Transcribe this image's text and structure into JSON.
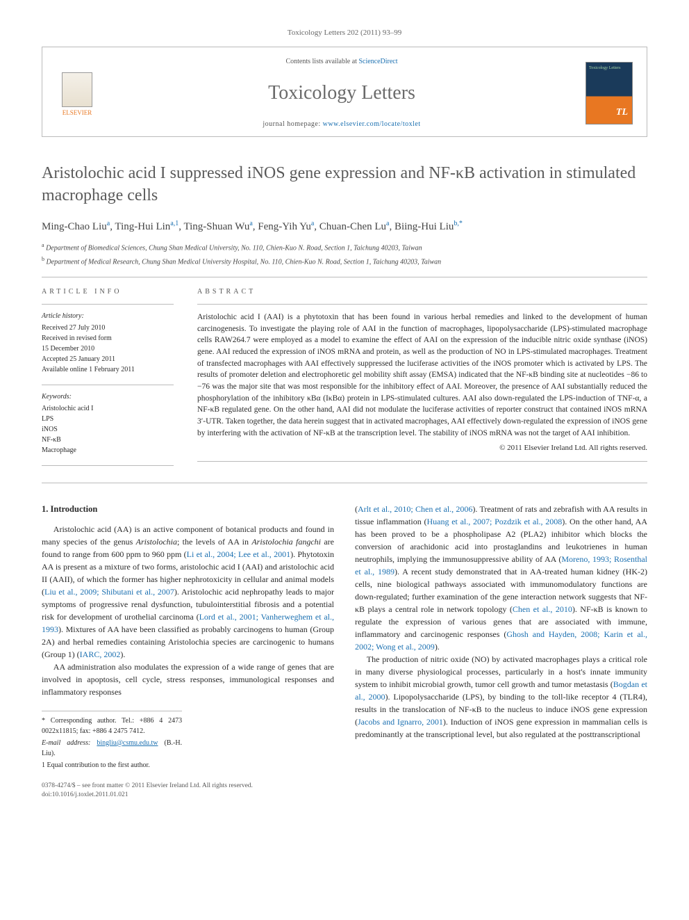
{
  "header": {
    "citation": "Toxicology Letters 202 (2011) 93–99",
    "contents_prefix": "Contents lists available at ",
    "contents_link": "ScienceDirect",
    "journal_name": "Toxicology Letters",
    "homepage_prefix": "journal homepage: ",
    "homepage_url": "www.elsevier.com/locate/toxlet",
    "publisher": "ELSEVIER",
    "cover_label": "Toxicology Letters"
  },
  "article": {
    "title": "Aristolochic acid I suppressed iNOS gene expression and NF-κB activation in stimulated macrophage cells",
    "authors_html": "Ming-Chao Liu<sup>a</sup>, Ting-Hui Lin<sup>a,1</sup>, Ting-Shuan Wu<sup>a</sup>, Feng-Yih Yu<sup>a</sup>, Chuan-Chen Lu<sup>a</sup>, Biing-Hui Liu<sup>b,*</sup>",
    "affiliations": [
      "a Department of Biomedical Sciences, Chung Shan Medical University, No. 110, Chien-Kuo N. Road, Section 1, Taichung 40203, Taiwan",
      "b Department of Medical Research, Chung Shan Medical University Hospital, No. 110, Chien-Kuo N. Road, Section 1, Taichung 40203, Taiwan"
    ]
  },
  "info": {
    "header": "ARTICLE INFO",
    "history_label": "Article history:",
    "history": [
      "Received 27 July 2010",
      "Received in revised form",
      "15 December 2010",
      "Accepted 25 January 2011",
      "Available online 1 February 2011"
    ],
    "keywords_label": "Keywords:",
    "keywords": [
      "Aristolochic acid I",
      "LPS",
      "iNOS",
      "NF-κB",
      "Macrophage"
    ]
  },
  "abstract": {
    "header": "ABSTRACT",
    "text": "Aristolochic acid I (AAI) is a phytotoxin that has been found in various herbal remedies and linked to the development of human carcinogenesis. To investigate the playing role of AAI in the function of macrophages, lipopolysaccharide (LPS)-stimulated macrophage cells RAW264.7 were employed as a model to examine the effect of AAI on the expression of the inducible nitric oxide synthase (iNOS) gene. AAI reduced the expression of iNOS mRNA and protein, as well as the production of NO in LPS-stimulated macrophages. Treatment of transfected macrophages with AAI effectively suppressed the luciferase activities of the iNOS promoter which is activated by LPS. The results of promoter deletion and electrophoretic gel mobility shift assay (EMSA) indicated that the NF-κB binding site at nucleotides −86 to −76 was the major site that was most responsible for the inhibitory effect of AAI. Moreover, the presence of AAI substantially reduced the phosphorylation of the inhibitory κBα (IκBα) protein in LPS-stimulated cultures. AAI also down-regulated the LPS-induction of TNF-α, a NF-κB regulated gene. On the other hand, AAI did not modulate the luciferase activities of reporter construct that contained iNOS mRNA 3′-UTR. Taken together, the data herein suggest that in activated macrophages, AAI effectively down-regulated the expression of iNOS gene by interfering with the activation of NF-κB at the transcription level. The stability of iNOS mRNA was not the target of AAI inhibition.",
    "copyright": "© 2011 Elsevier Ireland Ltd. All rights reserved."
  },
  "body": {
    "section_number": "1.",
    "section_title": "Introduction",
    "col1_p1": "Aristolochic acid (AA) is an active component of botanical products and found in many species of the genus Aristolochia; the levels of AA in Aristolochia fangchi are found to range from 600 ppm to 960 ppm (Li et al., 2004; Lee et al., 2001). Phytotoxin AA is present as a mixture of two forms, aristolochic acid I (AAI) and aristolochic acid II (AAII), of which the former has higher nephrotoxicity in cellular and animal models (Liu et al., 2009; Shibutani et al., 2007). Aristolochic acid nephropathy leads to major symptoms of progressive renal dysfunction, tubulointerstitial fibrosis and a potential risk for development of urothelial carcinoma (Lord et al., 2001; Vanherweghem et al., 1993). Mixtures of AA have been classified as probably carcinogens to human (Group 2A) and herbal remedies containing Aristolochia species are carcinogenic to humans (Group 1) (IARC, 2002).",
    "col1_p2": "AA administration also modulates the expression of a wide range of genes that are involved in apoptosis, cell cycle, stress responses, immunological responses and inflammatory responses",
    "col2_p1": "(Arlt et al., 2010; Chen et al., 2006). Treatment of rats and zebrafish with AA results in tissue inflammation (Huang et al., 2007; Pozdzik et al., 2008). On the other hand, AA has been proved to be a phospholipase A2 (PLA2) inhibitor which blocks the conversion of arachidonic acid into prostaglandins and leukotrienes in human neutrophils, implying the immunosuppressive ability of AA (Moreno, 1993; Rosenthal et al., 1989). A recent study demonstrated that in AA-treated human kidney (HK-2) cells, nine biological pathways associated with immunomodulatory functions are down-regulated; further examination of the gene interaction network suggests that NF-κB plays a central role in network topology (Chen et al., 2010). NF-κB is known to regulate the expression of various genes that are associated with immune, inflammatory and carcinogenic responses (Ghosh and Hayden, 2008; Karin et al., 2002; Wong et al., 2009).",
    "col2_p2": "The production of nitric oxide (NO) by activated macrophages plays a critical role in many diverse physiological processes, particularly in a host's innate immunity system to inhibit microbial growth, tumor cell growth and tumor metastasis (Bogdan et al., 2000). Lipopolysaccharide (LPS), by binding to the toll-like receptor 4 (TLR4), results in the translocation of NF-κB to the nucleus to induce iNOS gene expression (Jacobs and Ignarro, 2001). Induction of iNOS gene expression in mammalian cells is predominantly at the transcriptional level, but also regulated at the posttranscriptional"
  },
  "footnotes": {
    "corr": "* Corresponding author. Tel.: +886 4 2473 0022x11815; fax: +886 4 2475 7412.",
    "email_label": "E-mail address:",
    "email": "bingliu@csmu.edu.tw",
    "email_suffix": "(B.-H. Liu).",
    "equal": "1 Equal contribution to the first author."
  },
  "footer": {
    "issn": "0378-4274/$ – see front matter © 2011 Elsevier Ireland Ltd. All rights reserved.",
    "doi": "doi:10.1016/j.toxlet.2011.01.021"
  },
  "colors": {
    "link": "#1a6fb0",
    "elsevier_orange": "#e87722",
    "text_gray": "#5a5a5a",
    "border": "#bbbbbb"
  }
}
